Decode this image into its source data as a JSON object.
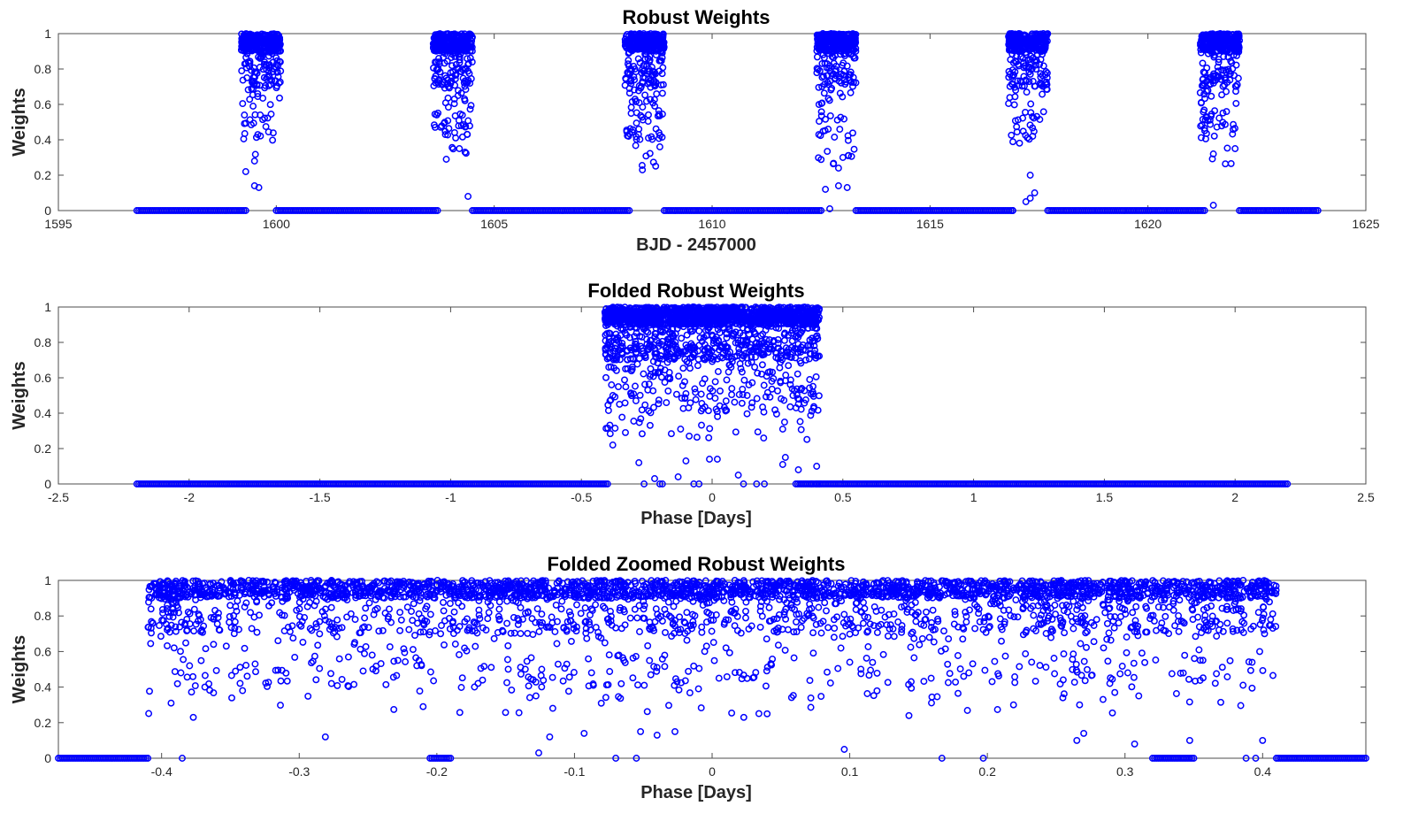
{
  "figure": {
    "background": "#ffffff",
    "marker_color": "#0000ff",
    "marker": "open-circle"
  },
  "chart_data": [
    {
      "type": "scatter",
      "title": "Robust Weights",
      "xlabel": "BJD - 2457000",
      "ylabel": "Weights",
      "xlim": [
        1595,
        1625
      ],
      "ylim": [
        0,
        1
      ],
      "xticks": [
        1595,
        1600,
        1605,
        1610,
        1615,
        1620,
        1625
      ],
      "yticks": [
        0,
        0.2,
        0.4,
        0.6,
        0.8,
        1
      ],
      "xtick_labels": [
        "1595",
        "1600",
        "1605",
        "1610",
        "1615",
        "1620",
        "1625"
      ],
      "ytick_labels": [
        "0",
        "0.2",
        "0.4",
        "0.6",
        "0.8",
        "1"
      ],
      "grid": false,
      "series": [
        {
          "color": "#0000ff",
          "out_of_transit_spans": [
            [
              1596.8,
              1599.3
            ],
            [
              1600.0,
              1603.7
            ],
            [
              1604.5,
              1608.1
            ],
            [
              1608.9,
              1612.5
            ],
            [
              1613.3,
              1616.9
            ],
            [
              1617.7,
              1621.3
            ],
            [
              1622.1,
              1623.9
            ]
          ],
          "out_of_transit_weight": 0,
          "transit_windows": [
            [
              1599.2,
              1600.1
            ],
            [
              1603.6,
              1604.5
            ],
            [
              1608.0,
              1608.9
            ],
            [
              1612.4,
              1613.3
            ],
            [
              1616.8,
              1617.7
            ],
            [
              1621.2,
              1622.1
            ]
          ],
          "in_transit_weight_range": [
            0.0,
            1.0
          ],
          "low_points": [
            [
              1599.3,
              0.22
            ],
            [
              1599.6,
              0.13
            ],
            [
              1599.5,
              0.14
            ],
            [
              1599.5,
              0.28
            ],
            [
              1604.4,
              0.08
            ],
            [
              1603.9,
              0.29
            ],
            [
              1604.2,
              0.35
            ],
            [
              1608.4,
              0.23
            ],
            [
              1608.8,
              0.36
            ],
            [
              1612.7,
              0.01
            ],
            [
              1612.9,
              0.14
            ],
            [
              1612.6,
              0.12
            ],
            [
              1613.1,
              0.13
            ],
            [
              1613.0,
              0.3
            ],
            [
              1612.9,
              0.24
            ],
            [
              1617.2,
              0.05
            ],
            [
              1617.4,
              0.1
            ],
            [
              1617.3,
              0.07
            ],
            [
              1616.9,
              0.0
            ],
            [
              1617.3,
              0.2
            ],
            [
              1621.5,
              0.03
            ],
            [
              1621.5,
              0.32
            ],
            [
              1622.0,
              0.35
            ]
          ]
        }
      ]
    },
    {
      "type": "scatter",
      "title": "Folded Robust Weights",
      "xlabel": "Phase [Days]",
      "ylabel": "Weights",
      "xlim": [
        -2.5,
        2.5
      ],
      "ylim": [
        0,
        1
      ],
      "xticks": [
        -2.5,
        -2,
        -1.5,
        -1,
        -0.5,
        0,
        0.5,
        1,
        1.5,
        2,
        2.5
      ],
      "yticks": [
        0,
        0.2,
        0.4,
        0.6,
        0.8,
        1
      ],
      "xtick_labels": [
        "-2.5",
        "-2",
        "-1.5",
        "-1",
        "-0.5",
        "0",
        "0.5",
        "1",
        "1.5",
        "2",
        "2.5"
      ],
      "ytick_labels": [
        "0",
        "0.2",
        "0.4",
        "0.6",
        "0.8",
        "1"
      ],
      "grid": false,
      "series": [
        {
          "color": "#0000ff",
          "out_of_transit_spans": [
            [
              -2.2,
              -0.4
            ],
            [
              0.32,
              0.41
            ],
            [
              0.41,
              2.2
            ]
          ],
          "out_of_transit_weight": 0,
          "transit_windows": [
            [
              -0.41,
              0.41
            ]
          ],
          "in_transit_weight_range": [
            0.0,
            1.0
          ],
          "low_points": [
            [
              -0.38,
              0.22
            ],
            [
              -0.28,
              0.12
            ],
            [
              -0.2,
              0.0
            ],
            [
              -0.19,
              0.0
            ],
            [
              -0.22,
              0.03
            ],
            [
              -0.1,
              0.13
            ],
            [
              -0.07,
              0.0
            ],
            [
              -0.05,
              0.0
            ],
            [
              -0.01,
              0.14
            ],
            [
              0.02,
              0.14
            ],
            [
              0.1,
              0.05
            ],
            [
              0.17,
              0.0
            ],
            [
              0.2,
              0.0
            ],
            [
              0.27,
              0.11
            ],
            [
              0.28,
              0.15
            ],
            [
              0.33,
              0.08
            ],
            [
              0.4,
              0.0
            ],
            [
              0.4,
              0.1
            ],
            [
              0.38,
              0.0
            ],
            [
              -0.26,
              0.0
            ],
            [
              -0.13,
              0.04
            ],
            [
              0.12,
              0.0
            ]
          ]
        }
      ]
    },
    {
      "type": "scatter",
      "title": "Folded Zoomed Robust Weights",
      "xlabel": "Phase [Days]",
      "ylabel": "Weights",
      "xlim": [
        -0.475,
        0.475
      ],
      "ylim": [
        0,
        1
      ],
      "xticks": [
        -0.4,
        -0.3,
        -0.2,
        -0.1,
        0,
        0.1,
        0.2,
        0.3,
        0.4
      ],
      "yticks": [
        0,
        0.2,
        0.4,
        0.6,
        0.8,
        1
      ],
      "xtick_labels": [
        "-0.4",
        "-0.3",
        "-0.2",
        "-0.1",
        "0",
        "0.1",
        "0.2",
        "0.3",
        "0.4"
      ],
      "ytick_labels": [
        "0",
        "0.2",
        "0.4",
        "0.6",
        "0.8",
        "1"
      ],
      "grid": false,
      "series": [
        {
          "color": "#0000ff",
          "out_of_transit_spans": [
            [
              -0.475,
              -0.41
            ],
            [
              -0.205,
              -0.19
            ],
            [
              0.32,
              0.35
            ],
            [
              0.41,
              0.475
            ]
          ],
          "out_of_transit_weight": 0,
          "transit_windows": [
            [
              -0.41,
              0.41
            ]
          ],
          "in_transit_weight_range": [
            0.0,
            1.0
          ],
          "low_points": [
            [
              -0.385,
              0.0
            ],
            [
              -0.377,
              0.23
            ],
            [
              -0.281,
              0.12
            ],
            [
              -0.126,
              0.03
            ],
            [
              -0.118,
              0.12
            ],
            [
              -0.093,
              0.14
            ],
            [
              -0.07,
              0.0
            ],
            [
              -0.055,
              0.0
            ],
            [
              -0.052,
              0.15
            ],
            [
              -0.04,
              0.13
            ],
            [
              -0.027,
              0.15
            ],
            [
              0.023,
              0.23
            ],
            [
              0.04,
              0.25
            ],
            [
              0.096,
              0.05
            ],
            [
              0.143,
              0.24
            ],
            [
              0.167,
              0.0
            ],
            [
              0.197,
              0.0
            ],
            [
              0.219,
              0.3
            ],
            [
              0.265,
              0.1
            ],
            [
              0.27,
              0.14
            ],
            [
              0.307,
              0.08
            ],
            [
              0.347,
              0.1
            ],
            [
              0.388,
              0.0
            ],
            [
              0.395,
              0.0
            ],
            [
              0.4,
              0.1
            ],
            [
              -0.21,
              0.29
            ],
            [
              -0.128,
              0.35
            ],
            [
              0.31,
              0.35
            ],
            [
              0.267,
              0.3
            ]
          ]
        }
      ]
    }
  ]
}
